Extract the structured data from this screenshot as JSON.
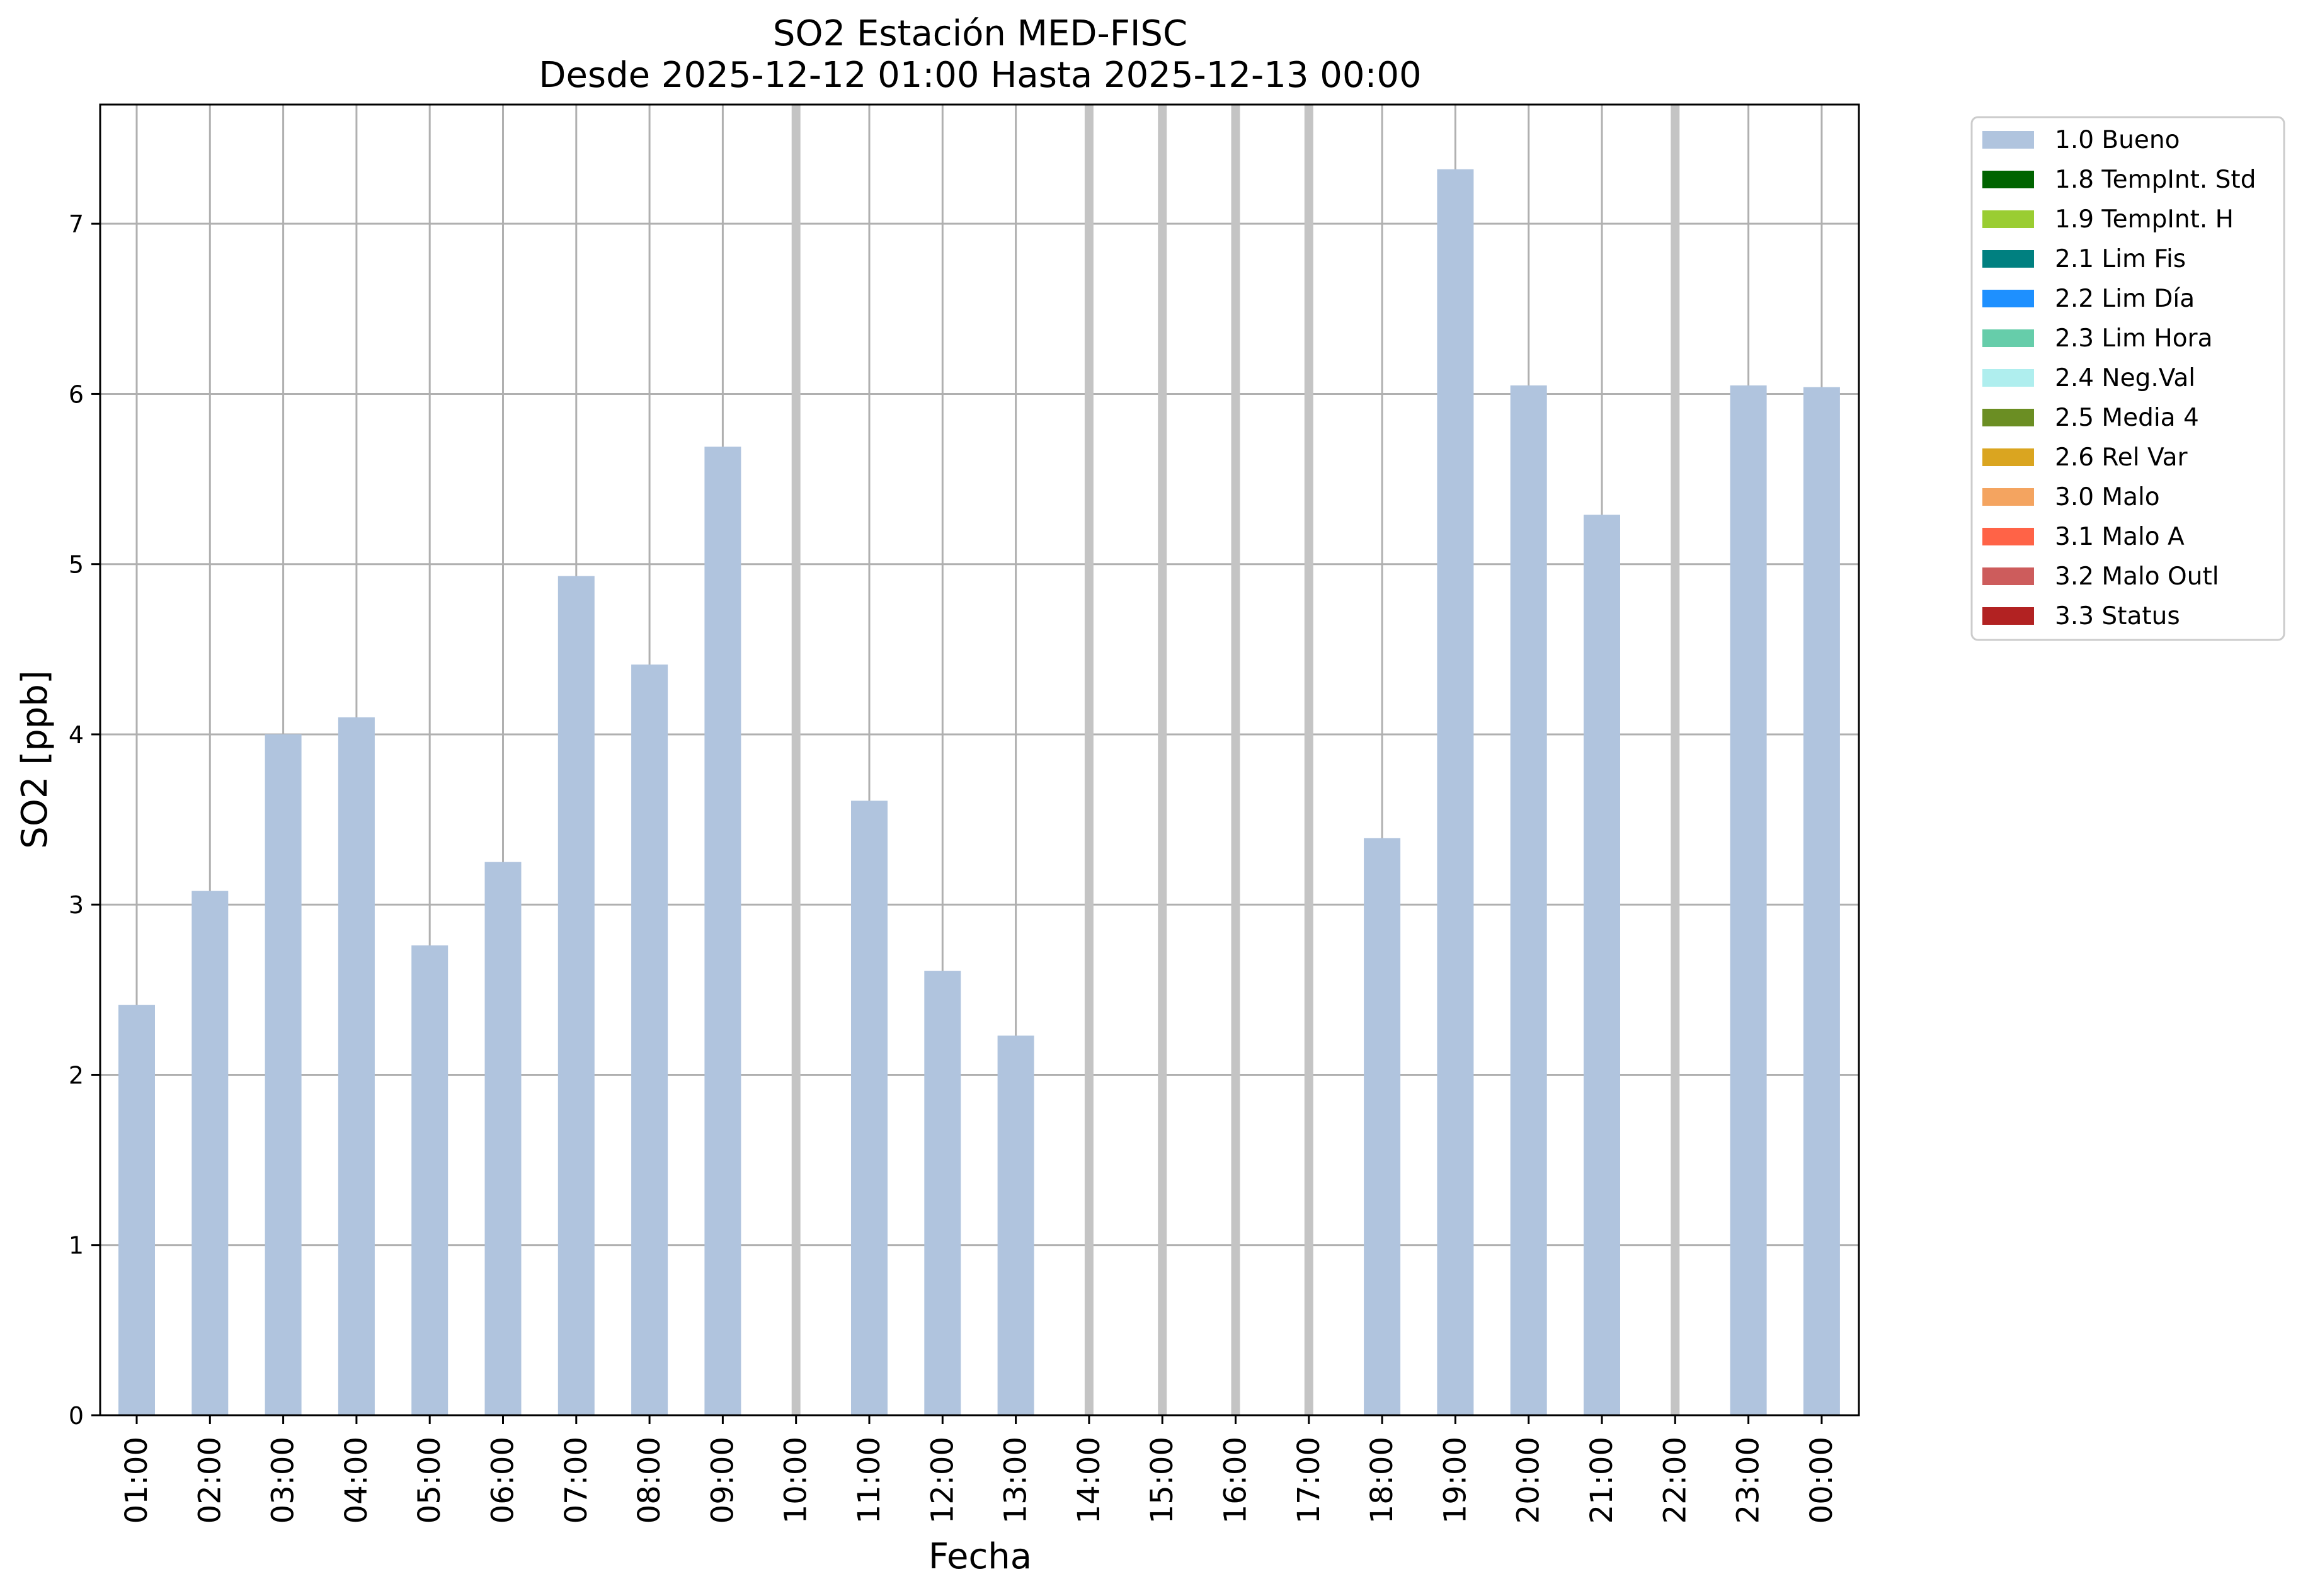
{
  "chart_data": {
    "type": "bar",
    "title": "SO2 Estación MED-FISC",
    "subtitle": "Desde 2025-12-12 01:00 Hasta 2025-12-13 00:00",
    "xlabel": "Fecha",
    "ylabel": "SO2 [ppb]",
    "ylim": [
      0,
      7.7
    ],
    "yticks": [
      0,
      1,
      2,
      3,
      4,
      5,
      6,
      7
    ],
    "grid": true,
    "legend_position": "outside-top-right",
    "categories": [
      "01:00",
      "02:00",
      "03:00",
      "04:00",
      "05:00",
      "06:00",
      "07:00",
      "08:00",
      "09:00",
      "10:00",
      "11:00",
      "12:00",
      "13:00",
      "14:00",
      "15:00",
      "16:00",
      "17:00",
      "18:00",
      "19:00",
      "20:00",
      "21:00",
      "22:00",
      "23:00",
      "00:00"
    ],
    "series": [
      {
        "name": "1.0 Bueno",
        "color": "#b0c4de",
        "values": [
          2.41,
          3.08,
          4.0,
          4.1,
          2.76,
          3.25,
          4.93,
          4.41,
          5.69,
          null,
          3.61,
          2.61,
          2.23,
          null,
          null,
          null,
          null,
          3.39,
          7.32,
          6.05,
          5.29,
          null,
          6.05,
          6.04
        ]
      }
    ],
    "missing_categories": [
      "10:00",
      "14:00",
      "15:00",
      "16:00",
      "17:00",
      "22:00"
    ],
    "legend": [
      {
        "label": "1.0 Bueno",
        "color": "#b0c4de"
      },
      {
        "label": "1.8 TempInt. Std",
        "color": "#006400"
      },
      {
        "label": "1.9 TempInt. H",
        "color": "#9acd32"
      },
      {
        "label": "2.1 Lim Fis",
        "color": "#008080"
      },
      {
        "label": "2.2 Lim Día",
        "color": "#1e90ff"
      },
      {
        "label": "2.3 Lim Hora",
        "color": "#66cdaa"
      },
      {
        "label": "2.4 Neg.Val",
        "color": "#afeeee"
      },
      {
        "label": "2.5 Media 4",
        "color": "#6b8e23"
      },
      {
        "label": "2.6 Rel Var",
        "color": "#daa520"
      },
      {
        "label": "3.0 Malo",
        "color": "#f4a460"
      },
      {
        "label": "3.1 Malo A",
        "color": "#ff6347"
      },
      {
        "label": "3.2 Malo Outl",
        "color": "#cd5c5c"
      },
      {
        "label": "3.3 Status",
        "color": "#b22222"
      }
    ]
  }
}
